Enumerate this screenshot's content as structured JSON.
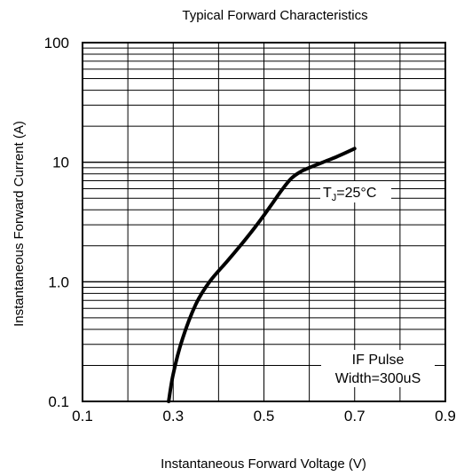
{
  "chart_data": {
    "type": "line",
    "title": "Typical Forward Characteristics",
    "xlabel": "Instantaneous Forward Voltage (V)",
    "ylabel": "Instantaneous Forward Current (A)",
    "xlim": [
      0.1,
      0.9
    ],
    "ylim": [
      0.1,
      100
    ],
    "yscale": "log",
    "grid": true,
    "x_ticks": [
      0.1,
      0.3,
      0.5,
      0.7,
      0.9
    ],
    "x_tick_labels": [
      "0.1",
      "0.3",
      "0.5",
      "0.7",
      "0.9"
    ],
    "y_ticks": [
      100,
      10,
      1,
      0.1
    ],
    "y_tick_labels": [
      "100",
      "10",
      "1.0",
      "0.1"
    ],
    "series": [
      {
        "x": [
          0.29,
          0.3,
          0.32,
          0.35,
          0.38,
          0.42,
          0.45,
          0.48,
          0.5,
          0.52,
          0.54,
          0.56,
          0.58,
          0.6,
          0.63,
          0.66,
          0.7
        ],
        "y": [
          0.1,
          0.17,
          0.33,
          0.65,
          1.0,
          1.5,
          2.05,
          2.85,
          3.6,
          4.6,
          5.9,
          7.3,
          8.3,
          9.0,
          10.0,
          11.1,
          13.0
        ]
      }
    ],
    "annotations": [
      {
        "id": "tj",
        "text_main": "T",
        "text_sub": "J",
        "text_rest": "=25°C"
      },
      {
        "id": "pulse1",
        "text": "IF Pulse"
      },
      {
        "id": "pulse2",
        "text": "Width=300uS"
      }
    ]
  }
}
